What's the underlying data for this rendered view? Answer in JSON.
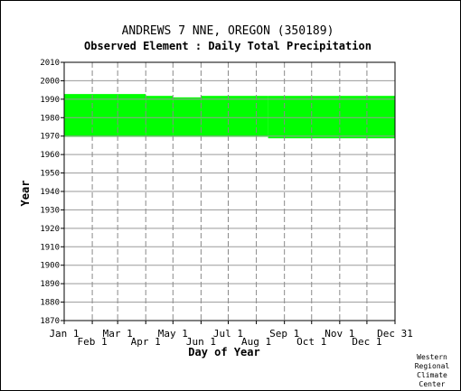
{
  "chart_data": {
    "type": "heatmap",
    "title": "ANDREWS 7 NNE, OREGON    (350189)",
    "subtitle": "Observed Element : Daily Total Precipitation",
    "xlabel": "Day of Year",
    "ylabel": "Year",
    "xlim": [
      1,
      366
    ],
    "ylim": [
      1870,
      2010
    ],
    "y_ticks": [
      2010,
      2000,
      1990,
      1980,
      1970,
      1960,
      1950,
      1940,
      1930,
      1920,
      1910,
      1900,
      1890,
      1880,
      1870
    ],
    "x_ticks_upper": [
      {
        "label": "Jan 1",
        "day": 1
      },
      {
        "label": "Mar 1",
        "day": 60
      },
      {
        "label": "May 1",
        "day": 121
      },
      {
        "label": "Jul 1",
        "day": 182
      },
      {
        "label": "Sep 1",
        "day": 244
      },
      {
        "label": "Nov 1",
        "day": 305
      },
      {
        "label": "Dec 31",
        "day": 366
      }
    ],
    "x_ticks_lower": [
      {
        "label": "Feb 1",
        "day": 32
      },
      {
        "label": "Apr 1",
        "day": 91
      },
      {
        "label": "Jun 1",
        "day": 152
      },
      {
        "label": "Aug 1",
        "day": 213
      },
      {
        "label": "Oct 1",
        "day": 274
      },
      {
        "label": "Dec 1",
        "day": 335
      }
    ],
    "grid": true,
    "series": [
      {
        "color": "#00ff00",
        "ranges": [
          {
            "day_start": 1,
            "day_end": 60,
            "year_start": 1969.6,
            "year_end": 1992.8
          },
          {
            "day_start": 60,
            "day_end": 91,
            "year_start": 1969.6,
            "year_end": 1992.8
          },
          {
            "day_start": 91,
            "day_end": 121,
            "year_start": 1969.6,
            "year_end": 1991.8
          },
          {
            "day_start": 121,
            "day_end": 152,
            "year_start": 1969.6,
            "year_end": 1991.0
          },
          {
            "day_start": 152,
            "day_end": 226,
            "year_start": 1969.6,
            "year_end": 1991.8
          },
          {
            "day_start": 226,
            "day_end": 366,
            "year_start": 1968.8,
            "year_end": 1991.8
          }
        ]
      }
    ]
  },
  "credit": [
    "Western",
    "Regional",
    "Climate",
    "Center"
  ]
}
